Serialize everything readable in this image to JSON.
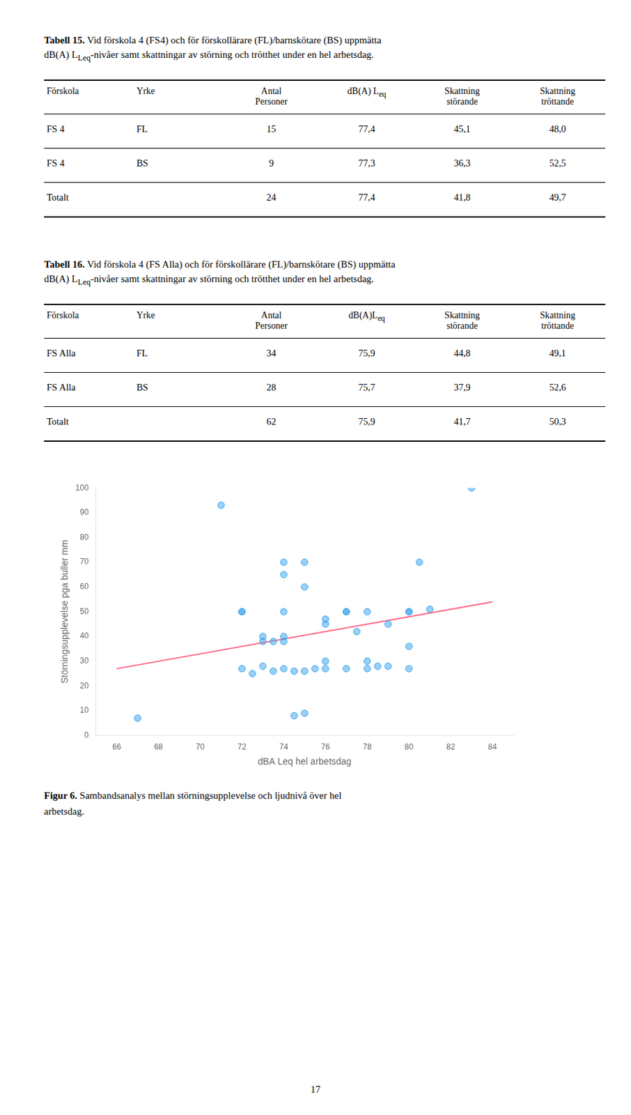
{
  "tables": [
    {
      "title": [
        [
          {
            "text": "Tabell 15.",
            "bold": true
          },
          {
            "text": " Vid förskola 4 (FS4) och för förskollärare (FL)/barnskötare (BS) uppmätta"
          }
        ],
        [
          {
            "text": "dB(A) L"
          },
          {
            "text": "Leq",
            "sub": true
          },
          {
            "text": "-nivåer samt skattningar av störning och trötthet under en hel arbetsdag."
          }
        ]
      ],
      "header": [
        [
          {
            "text": "Förskola"
          }
        ],
        [
          {
            "text": "Yrke"
          }
        ],
        [
          {
            "text": "Antal\nPersoner"
          }
        ],
        [
          {
            "text": "dB(A) L"
          },
          {
            "text": "eq",
            "sub": true
          }
        ],
        [
          {
            "text": "Skattning\nstörande"
          }
        ],
        [
          {
            "text": "Skattning\ntröttande"
          }
        ]
      ],
      "rows": [
        [
          "FS 4",
          "FL",
          "15",
          "77,4",
          "45,1",
          "48,0"
        ],
        [
          "FS 4",
          "BS",
          "9",
          "77,3",
          "36,3",
          "52,5"
        ],
        [
          "Totalt",
          "",
          "24",
          "77,4",
          "41,8",
          "49,7"
        ]
      ]
    },
    {
      "title": [
        [
          {
            "text": "Tabell 16.",
            "bold": true
          },
          {
            "text": " Vid förskola 4 (FS Alla) och för förskollärare (FL)/barnskötare (BS) uppmätta"
          }
        ],
        [
          {
            "text": "dB(A) L"
          },
          {
            "text": "Leq",
            "sub": true
          },
          {
            "text": "-nivåer samt skattningar av störning och trötthet under en hel arbetsdag."
          }
        ]
      ],
      "header": [
        [
          {
            "text": "Förskola"
          }
        ],
        [
          {
            "text": "Yrke"
          }
        ],
        [
          {
            "text": "Antal\nPersoner"
          }
        ],
        [
          {
            "text": "dB(A)L"
          },
          {
            "text": "eq",
            "sub": true
          }
        ],
        [
          {
            "text": "Skattning\nstörande"
          }
        ],
        [
          {
            "text": "Skattning\ntröttande"
          }
        ]
      ],
      "rows": [
        [
          "FS Alla",
          "FL",
          "34",
          "75,9",
          "44,8",
          "49,1"
        ],
        [
          "FS Alla",
          "BS",
          "28",
          "75,7",
          "37,9",
          "52,6"
        ],
        [
          "Totalt",
          "",
          "62",
          "75,9",
          "41,7",
          "50,3"
        ]
      ]
    }
  ],
  "chart_data": {
    "type": "scatter",
    "xlabel": "dBA Leq hel arbetsdag",
    "ylabel": "Störningsupplevelse pga buller mm",
    "series": [
      {
        "type": "scatter",
        "marker": "circle",
        "x": [
          67,
          71,
          72,
          72,
          72,
          72.5,
          73,
          73,
          73,
          73.5,
          73.5,
          74,
          74,
          74,
          74,
          74,
          74,
          74.5,
          74.5,
          75,
          75,
          75,
          75,
          75.5,
          76,
          76,
          76,
          76,
          77,
          77,
          77,
          77.5,
          78,
          78,
          78,
          78.5,
          79,
          79,
          80,
          80,
          80,
          80,
          80.5,
          81,
          83
        ],
        "values": [
          7,
          93,
          50,
          50,
          27,
          25,
          40,
          38,
          28,
          38,
          26,
          70,
          65,
          50,
          40,
          38,
          27,
          26,
          8,
          70,
          60,
          26,
          9,
          27,
          47,
          45,
          30,
          27,
          50,
          50,
          27,
          42,
          50,
          30,
          27,
          28,
          45,
          28,
          50,
          50,
          36,
          27,
          70,
          51,
          100
        ]
      },
      {
        "type": "line",
        "marker": "none",
        "line_style": "solid",
        "x": [
          66,
          84
        ],
        "values": [
          27,
          54
        ]
      }
    ],
    "xlim": [
      65,
      85
    ],
    "ylim": [
      0,
      100
    ],
    "xticks": [
      66,
      68,
      70,
      72,
      74,
      76,
      78,
      80,
      82,
      84
    ],
    "yticks": [
      0,
      10,
      20,
      30,
      40,
      50,
      60,
      70,
      80,
      90,
      100
    ],
    "grid": false
  },
  "caption": [
    [
      {
        "text": "Figur 6.",
        "bold": true
      },
      {
        "text": " Sambandsanalys mellan störningsupplevelse och ljudnivå över hel"
      }
    ],
    [
      {
        "text": "arbetsdag."
      }
    ]
  ],
  "page_number": "17"
}
